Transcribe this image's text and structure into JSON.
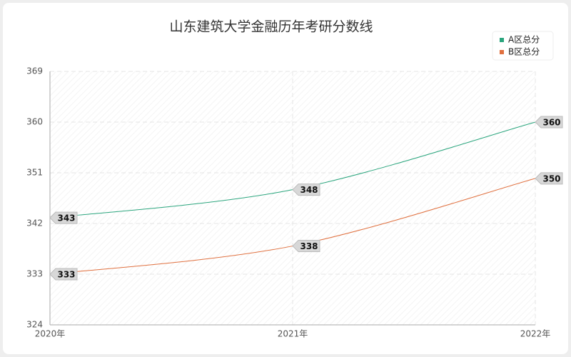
{
  "chart_data": {
    "type": "line",
    "title": "山东建筑大学金融历年考研分数线",
    "categories": [
      "2020年",
      "2021年",
      "2022年"
    ],
    "series": [
      {
        "name": "A区总分",
        "color": "#2aa57d",
        "values": [
          343,
          348,
          360
        ]
      },
      {
        "name": "B区总分",
        "color": "#e0703f",
        "values": [
          333,
          338,
          350
        ]
      }
    ],
    "ylim": [
      324,
      369
    ],
    "yticks": [
      324,
      333,
      342,
      351,
      360,
      369
    ],
    "grid": true,
    "legend": "top-right"
  }
}
